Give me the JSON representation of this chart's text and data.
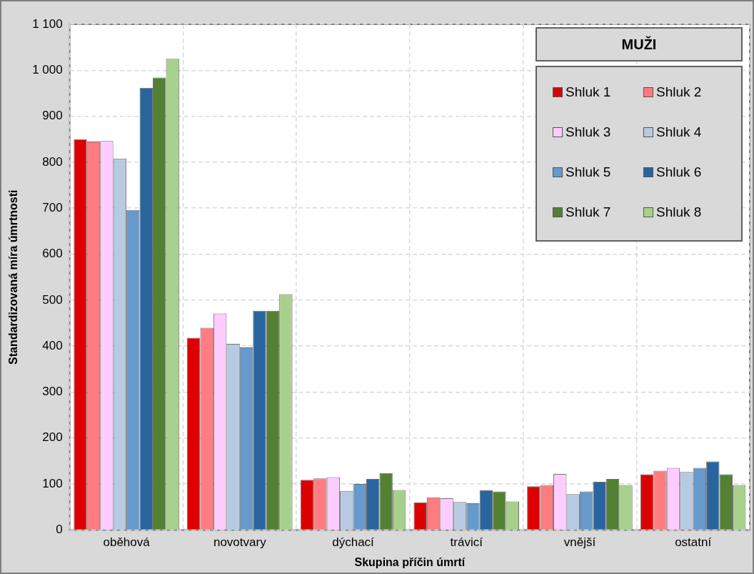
{
  "chart_data": {
    "type": "bar",
    "xlabel": "Skupina příčin úmrtí",
    "ylabel": "Standardizovaná míra úmrtnosti",
    "legend_title": "MUŽI",
    "categories": [
      "oběhová",
      "novotvary",
      "dýchací",
      "trávicí",
      "vnější",
      "ostatní"
    ],
    "series": [
      {
        "name": "Shluk 1",
        "color": "#dd0000",
        "values": [
          850,
          418,
          109,
          60,
          95,
          121
        ]
      },
      {
        "name": "Shluk 2",
        "color": "#ff7c80",
        "values": [
          845,
          440,
          112,
          71,
          98,
          129
        ]
      },
      {
        "name": "Shluk 3",
        "color": "#ffccff",
        "values": [
          846,
          471,
          115,
          69,
          122,
          135
        ]
      },
      {
        "name": "Shluk 4",
        "color": "#b7cae2",
        "values": [
          808,
          405,
          85,
          61,
          78,
          126
        ]
      },
      {
        "name": "Shluk 5",
        "color": "#6699cc",
        "values": [
          696,
          397,
          100,
          58,
          84,
          135
        ]
      },
      {
        "name": "Shluk 6",
        "color": "#28659e",
        "values": [
          962,
          477,
          111,
          87,
          105,
          149
        ]
      },
      {
        "name": "Shluk 7",
        "color": "#538033",
        "values": [
          984,
          477,
          124,
          84,
          111,
          121
        ]
      },
      {
        "name": "Shluk 8",
        "color": "#a8d08d",
        "values": [
          1025,
          513,
          87,
          62,
          98,
          98
        ]
      }
    ],
    "ylim": [
      0,
      1100
    ],
    "yticks": [
      0,
      100,
      200,
      300,
      400,
      500,
      600,
      700,
      800,
      900,
      {
        "value": 1000,
        "label": "1 000"
      },
      {
        "value": 1100,
        "label": "1 100"
      }
    ],
    "grid": true,
    "legend": "top right"
  }
}
